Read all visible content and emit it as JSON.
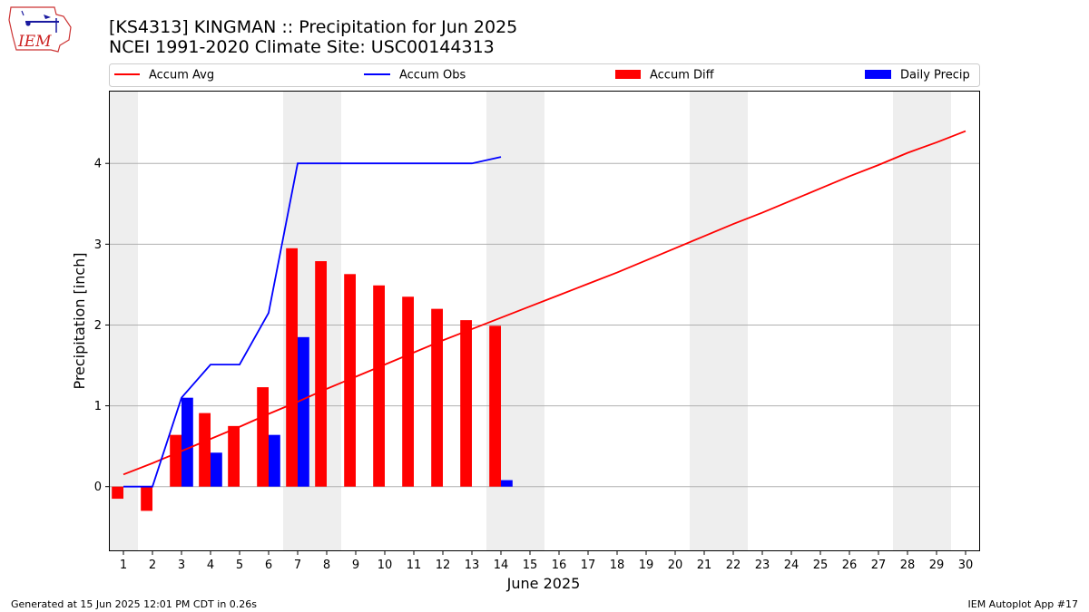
{
  "header": {
    "title_line1": "[KS4313] KINGMAN :: Precipitation for Jun 2025",
    "title_line2": "NCEI 1991-2020 Climate Site: USC00144313",
    "logo_text": "IEM"
  },
  "footer": {
    "left": "Generated at 15 Jun 2025 12:01 PM CDT in 0.26s",
    "right": "IEM Autoplot App #17"
  },
  "colors": {
    "accum_avg": "#ff0000",
    "accum_obs": "#0000ff",
    "accum_diff": "#ff0000",
    "daily_precip": "#0000ff",
    "weekend_shade": "#eeeeee",
    "grid": "#b0b0b0"
  },
  "chart_data": {
    "type": "bar",
    "title": "[KS4313] KINGMAN :: Precipitation for Jun 2025",
    "subtitle": "NCEI 1991-2020 Climate Site: USC00144313",
    "xlabel": "June 2025",
    "ylabel": "Precipitation [inch]",
    "xlim": [
      0.5,
      30.5
    ],
    "ylim": [
      -0.8,
      4.9
    ],
    "yticks": [
      0,
      1,
      2,
      3,
      4
    ],
    "categories": [
      "1",
      "2",
      "3",
      "4",
      "5",
      "6",
      "7",
      "8",
      "9",
      "10",
      "11",
      "12",
      "13",
      "14",
      "15",
      "16",
      "17",
      "18",
      "19",
      "20",
      "21",
      "22",
      "23",
      "24",
      "25",
      "26",
      "27",
      "28",
      "29",
      "30"
    ],
    "grid": "horizontal",
    "legend_position": "top",
    "weekend_days": [
      1,
      7,
      8,
      14,
      15,
      21,
      22,
      28,
      29
    ],
    "series": [
      {
        "name": "Accum Avg",
        "type": "line",
        "x": [
          1,
          2,
          3,
          4,
          5,
          6,
          7,
          8,
          9,
          10,
          11,
          12,
          13,
          14,
          15,
          16,
          17,
          18,
          19,
          20,
          21,
          22,
          23,
          24,
          25,
          26,
          27,
          28,
          29,
          30
        ],
        "values": [
          0.15,
          0.29,
          0.44,
          0.59,
          0.74,
          0.9,
          1.05,
          1.21,
          1.36,
          1.51,
          1.66,
          1.81,
          1.95,
          2.09,
          2.23,
          2.37,
          2.51,
          2.65,
          2.8,
          2.95,
          3.1,
          3.25,
          3.39,
          3.54,
          3.69,
          3.84,
          3.98,
          4.13,
          4.26,
          4.4
        ]
      },
      {
        "name": "Accum Obs",
        "type": "line",
        "x": [
          1,
          2,
          3,
          4,
          5,
          6,
          7,
          8,
          9,
          10,
          11,
          12,
          13,
          14
        ],
        "values": [
          0.0,
          0.0,
          1.1,
          1.51,
          1.51,
          2.15,
          4.0,
          4.0,
          4.0,
          4.0,
          4.0,
          4.0,
          4.0,
          4.08
        ]
      },
      {
        "name": "Accum Diff",
        "type": "bar",
        "x": [
          1,
          2,
          3,
          4,
          5,
          6,
          7,
          8,
          9,
          10,
          11,
          12,
          13,
          14
        ],
        "values": [
          -0.15,
          -0.3,
          0.64,
          0.91,
          0.75,
          1.23,
          2.95,
          2.79,
          2.63,
          2.49,
          2.35,
          2.2,
          2.06,
          1.99
        ]
      },
      {
        "name": "Daily Precip",
        "type": "bar",
        "x": [
          1,
          2,
          3,
          4,
          5,
          6,
          7,
          8,
          9,
          10,
          11,
          12,
          13,
          14
        ],
        "values": [
          0,
          0,
          1.1,
          0.42,
          0,
          0.64,
          1.85,
          0,
          0,
          0,
          0,
          0,
          0,
          0.08
        ]
      }
    ]
  }
}
